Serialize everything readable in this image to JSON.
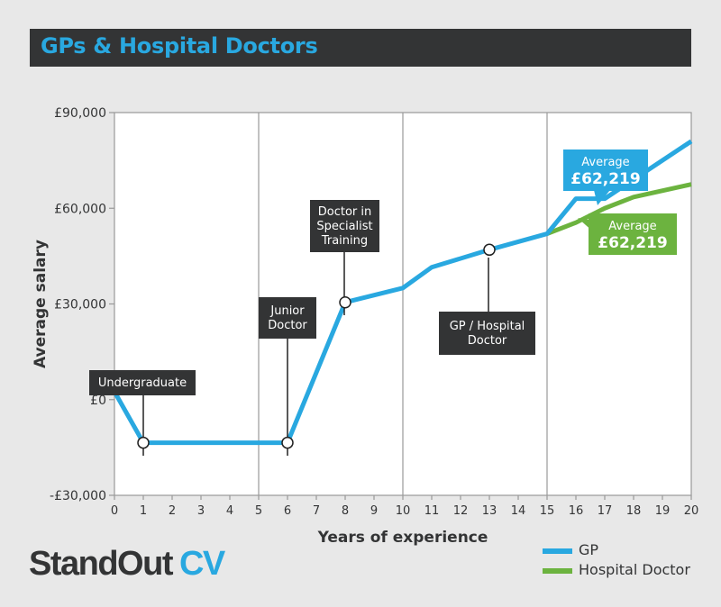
{
  "title": "GPs & Hospital Doctors",
  "logo": {
    "part1": "StandOut",
    "part2": "CV"
  },
  "colors": {
    "gp": "#29a8e0",
    "hospital": "#6cb33f",
    "dark": "#333435",
    "grid": "#999999",
    "plotBg": "#ffffff"
  },
  "chart_data": {
    "type": "line",
    "xlabel": "Years of experience",
    "ylabel": "Average salary",
    "x": [
      0,
      1,
      2,
      3,
      4,
      5,
      6,
      7,
      8,
      9,
      10,
      11,
      12,
      13,
      14,
      15,
      16,
      17,
      18,
      19,
      20
    ],
    "xlim": [
      0,
      20
    ],
    "ylim": [
      -30000,
      90000
    ],
    "ytick_labels": [
      {
        "value": 90000,
        "label": "£90,000"
      },
      {
        "value": 60000,
        "label": "£60,000"
      },
      {
        "value": 30000,
        "label": "£30,000"
      },
      {
        "value": 0,
        "label": "£0"
      },
      {
        "value": -30000,
        "label": "-£30,000"
      }
    ],
    "vertical_gridlines": [
      5,
      10,
      15
    ],
    "series": [
      {
        "name": "GP",
        "color": "#29a8e0",
        "points": [
          [
            0,
            2500
          ],
          [
            1,
            -13500
          ],
          [
            6,
            -13500
          ],
          [
            8,
            30500
          ],
          [
            10,
            35000
          ],
          [
            11,
            41500
          ],
          [
            13,
            47000
          ],
          [
            15,
            52000
          ],
          [
            16,
            63000
          ],
          [
            17,
            63000
          ],
          [
            20,
            81000
          ]
        ]
      },
      {
        "name": "Hospital Doctor",
        "color": "#6cb33f",
        "points": [
          [
            15,
            52000
          ],
          [
            16,
            55500
          ],
          [
            17,
            60000
          ],
          [
            18,
            63500
          ],
          [
            20,
            67500
          ]
        ]
      }
    ],
    "markers": [
      {
        "x": 1,
        "y": -13500
      },
      {
        "x": 6,
        "y": -13500
      },
      {
        "x": 8,
        "y": 30500
      },
      {
        "x": 13,
        "y": 47000
      }
    ],
    "annotations": [
      {
        "lines": [
          "Undergraduate"
        ],
        "color": "#333435"
      },
      {
        "lines": [
          "Junior",
          "Doctor"
        ],
        "color": "#333435"
      },
      {
        "lines": [
          "Doctor in",
          "Specialist",
          "Training"
        ],
        "color": "#333435"
      },
      {
        "lines": [
          "GP / Hospital",
          "Doctor"
        ],
        "color": "#333435"
      },
      {
        "lines": [
          "Average",
          "£62,219"
        ],
        "color": "#29a8e0"
      },
      {
        "lines": [
          "Average",
          "£62,219"
        ],
        "color": "#6cb33f"
      }
    ]
  }
}
